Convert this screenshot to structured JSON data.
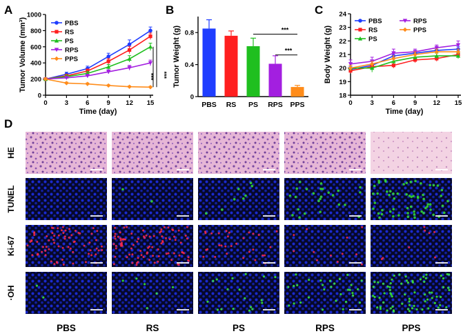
{
  "colors": {
    "PBS": "#1f3dff",
    "RS": "#ff1f1f",
    "PS": "#1fbf1f",
    "RPS": "#a31fe0",
    "PPS": "#ff8c1a"
  },
  "chart_data": [
    {
      "panel": "A",
      "type": "line",
      "xlabel": "Time (day)",
      "ylabel": "Tumor Volume (mm³)",
      "x": [
        0,
        3,
        6,
        9,
        12,
        15
      ],
      "xlim": [
        0,
        15
      ],
      "ylim": [
        0,
        1000
      ],
      "yticks": [
        0,
        200,
        400,
        600,
        800,
        1000
      ],
      "series": [
        {
          "name": "PBS",
          "values": [
            200,
            260,
            330,
            480,
            630,
            800
          ],
          "errors": [
            15,
            25,
            30,
            40,
            55,
            45
          ]
        },
        {
          "name": "RS",
          "values": [
            200,
            240,
            300,
            420,
            560,
            730
          ],
          "errors": [
            15,
            20,
            25,
            35,
            45,
            40
          ]
        },
        {
          "name": "PS",
          "values": [
            200,
            230,
            270,
            350,
            450,
            600
          ],
          "errors": [
            15,
            20,
            25,
            30,
            40,
            45
          ]
        },
        {
          "name": "RPS",
          "values": [
            200,
            215,
            240,
            290,
            340,
            400
          ],
          "errors": [
            15,
            15,
            20,
            25,
            30,
            35
          ]
        },
        {
          "name": "PPS",
          "values": [
            200,
            150,
            140,
            120,
            105,
            100
          ],
          "errors": [
            15,
            12,
            12,
            10,
            10,
            10
          ]
        }
      ],
      "annotations": [
        "***",
        "***"
      ],
      "legend": "top-left"
    },
    {
      "panel": "B",
      "type": "bar",
      "ylabel": "Tumor Weight (g)",
      "categories": [
        "PBS",
        "RS",
        "PS",
        "RPS",
        "PPS"
      ],
      "values": [
        0.85,
        0.76,
        0.63,
        0.41,
        0.12
      ],
      "errors": [
        0.11,
        0.06,
        0.1,
        0.1,
        0.02
      ],
      "ylim": [
        0,
        1.0
      ],
      "yticks": [
        0,
        0.4,
        0.8
      ],
      "annotations": [
        "***",
        "***"
      ]
    },
    {
      "panel": "C",
      "type": "line",
      "xlabel": "Time (day)",
      "ylabel": "Body Weight (g)",
      "x": [
        0,
        3,
        6,
        9,
        12,
        15
      ],
      "xlim": [
        0,
        15
      ],
      "ylim": [
        18,
        24
      ],
      "yticks": [
        18,
        19,
        20,
        21,
        22,
        23,
        24
      ],
      "series": [
        {
          "name": "PBS",
          "values": [
            19.9,
            20.2,
            20.9,
            21.1,
            21.3,
            21.4
          ],
          "errors": [
            0.2,
            0.3,
            0.2,
            0.2,
            0.2,
            0.2
          ]
        },
        {
          "name": "RS",
          "values": [
            19.8,
            20.1,
            20.2,
            20.6,
            20.7,
            21.0
          ],
          "errors": [
            0.2,
            0.2,
            0.2,
            0.2,
            0.2,
            0.2
          ]
        },
        {
          "name": "PS",
          "values": [
            20.0,
            20.0,
            20.5,
            20.8,
            20.9,
            20.9
          ],
          "errors": [
            0.2,
            0.3,
            0.2,
            0.2,
            0.2,
            0.2
          ]
        },
        {
          "name": "RPS",
          "values": [
            20.3,
            20.5,
            21.1,
            21.2,
            21.5,
            21.7
          ],
          "errors": [
            0.3,
            0.3,
            0.3,
            0.2,
            0.2,
            0.3
          ]
        },
        {
          "name": "PPS",
          "values": [
            20.0,
            20.3,
            20.7,
            21.0,
            21.2,
            21.2
          ],
          "errors": [
            0.2,
            0.2,
            0.2,
            0.2,
            0.2,
            0.2
          ]
        }
      ],
      "legend": "top"
    }
  ],
  "panel_labels": [
    "A",
    "B",
    "C",
    "D"
  ],
  "micrographs": {
    "rows": [
      "HE",
      "TUNEL",
      "Ki-67",
      "·OH"
    ],
    "columns": [
      "PBS",
      "RS",
      "PS",
      "RPS",
      "PPS"
    ]
  }
}
